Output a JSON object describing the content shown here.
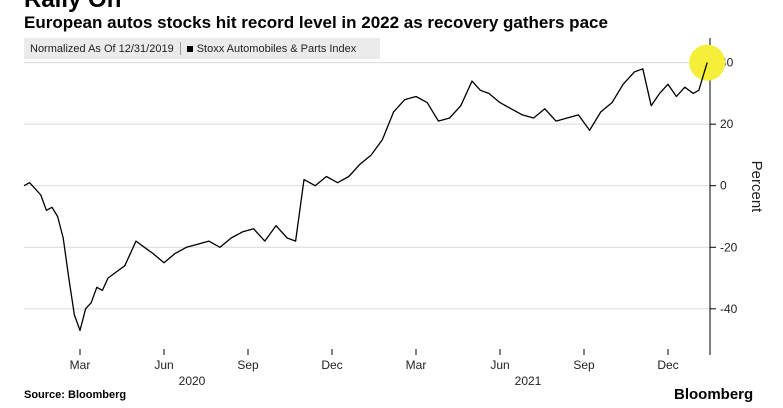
{
  "header": {
    "title": "Rally On",
    "subtitle": "European autos stocks hit record level in 2022 as recovery gathers pace"
  },
  "legend": {
    "normalized_label": "Normalized As Of 12/31/2019",
    "series_label": "Stoxx Automobiles & Parts Index"
  },
  "footer": {
    "source": "Source: Bloomberg",
    "brand": "Bloomberg"
  },
  "colors": {
    "line": "#000000",
    "grid": "#d9d9d9",
    "highlight": "#f5ef3a",
    "legend_bg": "#ebebeb"
  },
  "chart_data": {
    "type": "line",
    "title": "European autos stocks hit record level in 2022 as recovery gathers pace",
    "ylabel": "Percent",
    "xlabel": "",
    "ylim": [
      -55,
      48
    ],
    "yticks": [
      -40,
      -20,
      0,
      20,
      40
    ],
    "grid": true,
    "xlim": [
      0,
      24.5
    ],
    "xticks": [
      {
        "x": 2,
        "label": "Mar"
      },
      {
        "x": 5,
        "label": "Jun"
      },
      {
        "x": 8,
        "label": "Sep"
      },
      {
        "x": 11,
        "label": "Dec"
      },
      {
        "x": 14,
        "label": "Mar"
      },
      {
        "x": 17,
        "label": "Jun"
      },
      {
        "x": 20,
        "label": "Sep"
      },
      {
        "x": 23,
        "label": "Dec"
      }
    ],
    "year_labels": [
      {
        "x": 6,
        "label": "2020"
      },
      {
        "x": 18,
        "label": "2021"
      }
    ],
    "highlight_point": {
      "x": 24.4,
      "y": 40
    },
    "series": [
      {
        "name": "Stoxx Automobiles & Parts Index",
        "x": [
          0,
          0.2,
          0.4,
          0.6,
          0.8,
          1.0,
          1.2,
          1.4,
          1.6,
          1.8,
          2.0,
          2.2,
          2.4,
          2.6,
          2.8,
          3.0,
          3.3,
          3.6,
          4.0,
          4.3,
          4.6,
          5.0,
          5.4,
          5.8,
          6.2,
          6.6,
          7.0,
          7.4,
          7.8,
          8.2,
          8.6,
          9.0,
          9.4,
          9.7,
          10.0,
          10.4,
          10.8,
          11.2,
          11.6,
          12.0,
          12.4,
          12.8,
          13.2,
          13.6,
          14.0,
          14.4,
          14.8,
          15.2,
          15.6,
          16.0,
          16.3,
          16.6,
          17.0,
          17.4,
          17.8,
          18.2,
          18.6,
          19.0,
          19.4,
          19.8,
          20.2,
          20.6,
          21.0,
          21.4,
          21.8,
          22.1,
          22.4,
          22.7,
          23.0,
          23.3,
          23.6,
          23.9,
          24.1,
          24.4
        ],
        "y": [
          0,
          1,
          -1,
          -3,
          -8,
          -7,
          -10,
          -17,
          -30,
          -42,
          -47,
          -40,
          -38,
          -33,
          -34,
          -30,
          -28,
          -26,
          -18,
          -20,
          -22,
          -25,
          -22,
          -20,
          -19,
          -18,
          -20,
          -17,
          -15,
          -14,
          -18,
          -13,
          -17,
          -18,
          2,
          0,
          3,
          1,
          3,
          7,
          10,
          15,
          24,
          28,
          29,
          27,
          21,
          22,
          26,
          34,
          31,
          30,
          27,
          25,
          23,
          22,
          25,
          21,
          22,
          23,
          18,
          24,
          27,
          33,
          37,
          38,
          26,
          30,
          33,
          29,
          32,
          30,
          31,
          40
        ]
      }
    ]
  }
}
